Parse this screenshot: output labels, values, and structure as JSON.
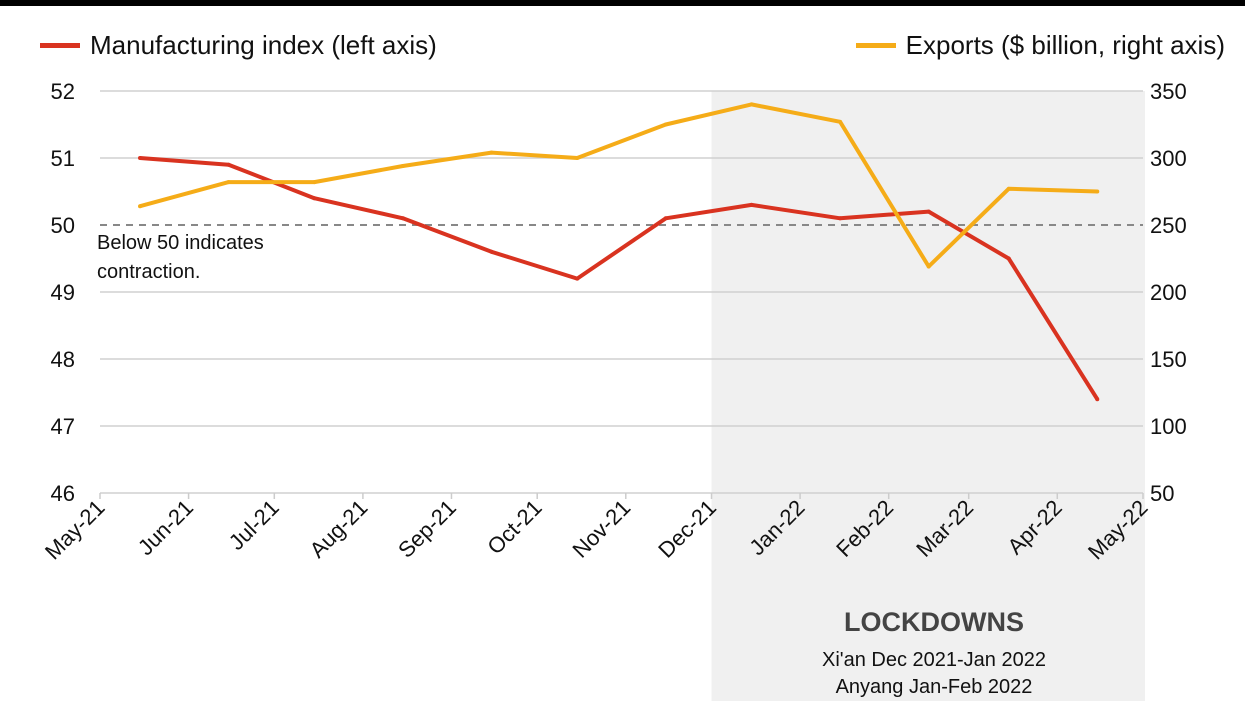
{
  "chart_data": {
    "type": "line",
    "title": "",
    "x_ticks": [
      "May-21",
      "Jun-21",
      "Jul-21",
      "Aug-21",
      "Sep-21",
      "Oct-21",
      "Nov-21",
      "Dec-21",
      "Jan-22",
      "Feb-22",
      "Mar-22",
      "Apr-22",
      "May-22"
    ],
    "x_tick_dates": [
      "2021-05-01",
      "2021-06-01",
      "2021-07-01",
      "2021-08-01",
      "2021-09-01",
      "2021-10-01",
      "2021-11-01",
      "2021-12-01",
      "2022-01-01",
      "2022-02-01",
      "2022-03-01",
      "2022-04-01",
      "2022-05-01"
    ],
    "x": [
      "2021-05-15",
      "2021-06-15",
      "2021-07-15",
      "2021-08-15",
      "2021-09-15",
      "2021-10-15",
      "2021-11-15",
      "2021-12-15",
      "2022-01-15",
      "2022-02-15",
      "2022-03-15",
      "2022-04-15"
    ],
    "y_left": {
      "ylim": [
        46,
        52
      ],
      "ticks": [
        46,
        47,
        48,
        49,
        50,
        51,
        52
      ]
    },
    "y_right": {
      "ylim": [
        50,
        350
      ],
      "ticks": [
        50,
        100,
        150,
        200,
        250,
        300,
        350
      ]
    },
    "grid": true,
    "series": [
      {
        "name": "Manufacturing index (left axis)",
        "axis": "left",
        "color": "#d93320",
        "values": [
          51.0,
          50.9,
          50.4,
          50.1,
          49.6,
          49.2,
          50.1,
          50.3,
          50.1,
          50.2,
          49.5,
          47.4
        ]
      },
      {
        "name": "Exports ($ billion, right axis)",
        "axis": "right",
        "color": "#f5ac18",
        "values": [
          264,
          282,
          282,
          294,
          304,
          300,
          325,
          340,
          327,
          219,
          277,
          275
        ]
      }
    ],
    "reference_line": {
      "axis": "left",
      "value": 50,
      "label_lines": [
        "Below 50 indicates",
        "contraction."
      ]
    },
    "shaded_region": {
      "from": "2021-12-01",
      "to": "2022-05-01",
      "color": "#f0f0f0",
      "title": "LOCKDOWNS",
      "lines": [
        "Xi'an Dec 2021-Jan 2022",
        "Anyang Jan-Feb 2022"
      ]
    },
    "legend": {
      "placement": "top"
    }
  }
}
